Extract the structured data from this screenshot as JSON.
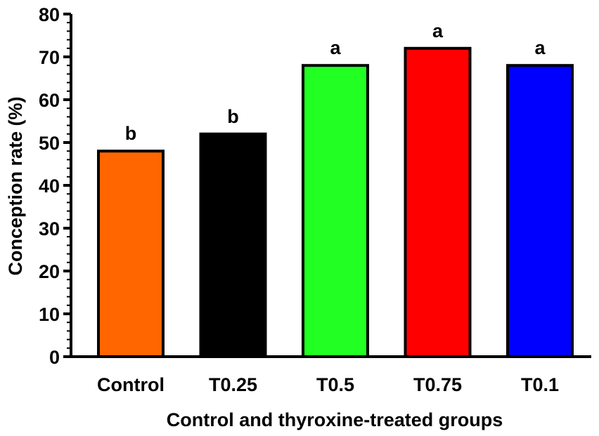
{
  "chart_data": {
    "type": "bar",
    "categories": [
      "Control",
      "T0.25",
      "T0.5",
      "T0.75",
      "T0.1"
    ],
    "values": [
      48,
      52,
      68,
      72,
      68
    ],
    "colors": [
      "#ff6600",
      "#000000",
      "#22ff22",
      "#ff0000",
      "#0000ff"
    ],
    "significance": [
      "b",
      "b",
      "a",
      "a",
      "a"
    ],
    "xlabel": "Control and thyroxine-treated groups",
    "ylabel": "Conception rate (%)",
    "ylim": [
      0,
      80
    ],
    "yticks": [
      0,
      10,
      20,
      30,
      40,
      50,
      60,
      70,
      80
    ],
    "grid": false,
    "legend": "none"
  }
}
